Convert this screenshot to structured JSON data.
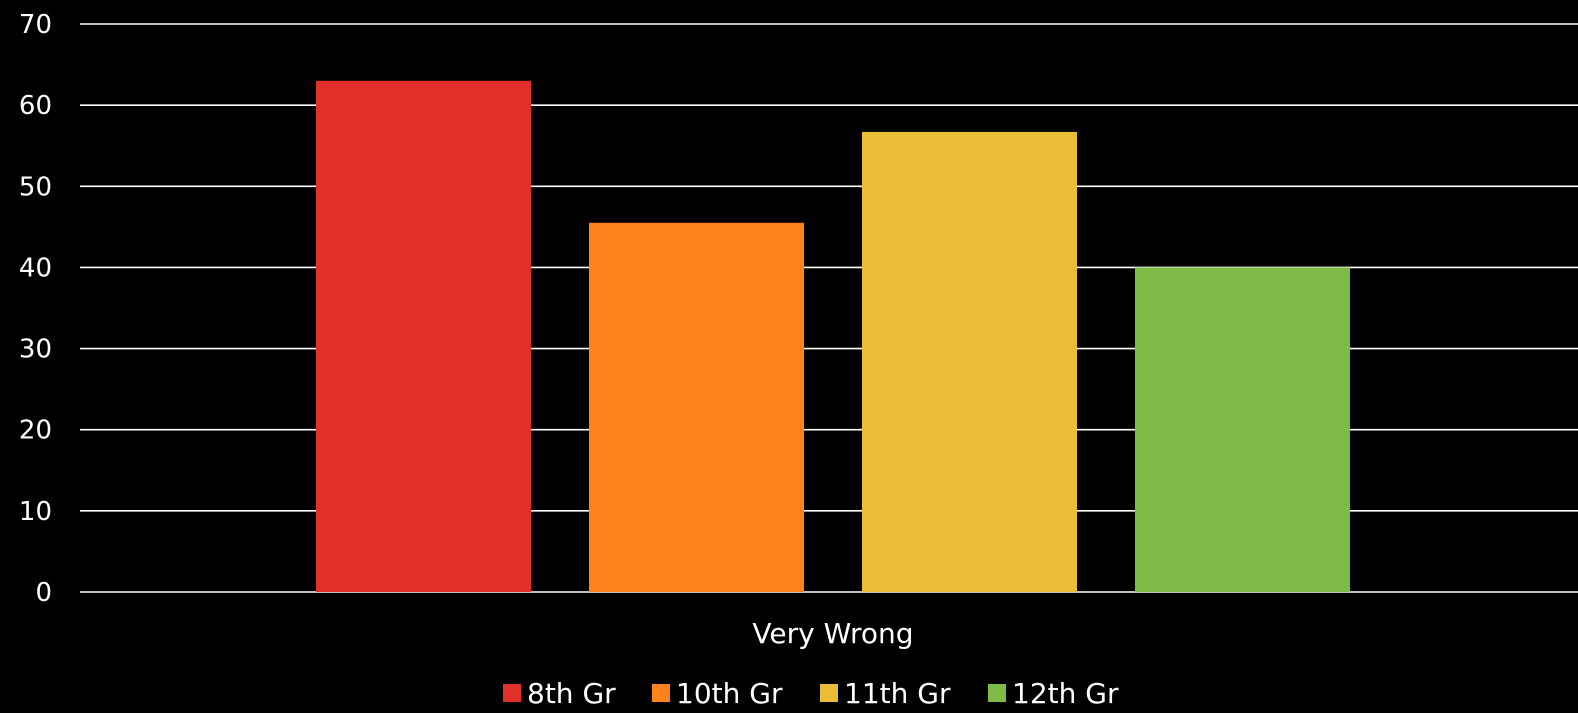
{
  "chart_data": {
    "type": "bar",
    "title": "",
    "xlabel": "",
    "ylabel": "",
    "categories": [
      "Very Wrong"
    ],
    "series": [
      {
        "name": "8th Gr",
        "values": [
          63
        ],
        "color": "#e03029"
      },
      {
        "name": "10th Gr",
        "values": [
          45.5
        ],
        "color": "#fd821e"
      },
      {
        "name": "11th Gr",
        "values": [
          56.7
        ],
        "color": "#e9bd35"
      },
      {
        "name": "12th Gr",
        "values": [
          40
        ],
        "color": "#7fba46"
      }
    ],
    "ylim": [
      0,
      70
    ],
    "yticks": [
      "0",
      "10",
      "20",
      "30",
      "40",
      "50",
      "60",
      "70"
    ],
    "grid": true,
    "legend": "bottom-center"
  }
}
